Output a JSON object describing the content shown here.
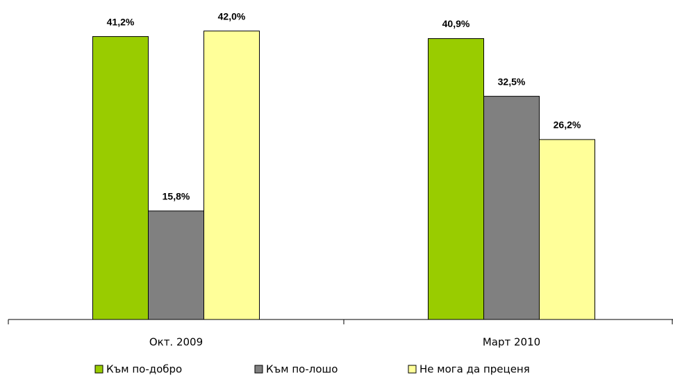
{
  "chart_data": {
    "type": "bar",
    "categories": [
      "Окт. 2009",
      "Март 2010"
    ],
    "series": [
      {
        "name": "Към по-добро",
        "color": "#99cc00",
        "values": [
          41.2,
          40.9
        ],
        "value_labels": [
          "41,2%",
          "40,9%"
        ]
      },
      {
        "name": "Към по-лошо",
        "color": "#808080",
        "values": [
          15.8,
          32.5
        ],
        "value_labels": [
          "15,8%",
          "32,5%"
        ]
      },
      {
        "name": "Не мога да преценя",
        "color": "#ffff99",
        "values": [
          42.0,
          26.2
        ],
        "value_labels": [
          "42,0%",
          "26,2%"
        ]
      }
    ],
    "ylim": [
      0,
      45
    ],
    "legend": "bottom"
  }
}
